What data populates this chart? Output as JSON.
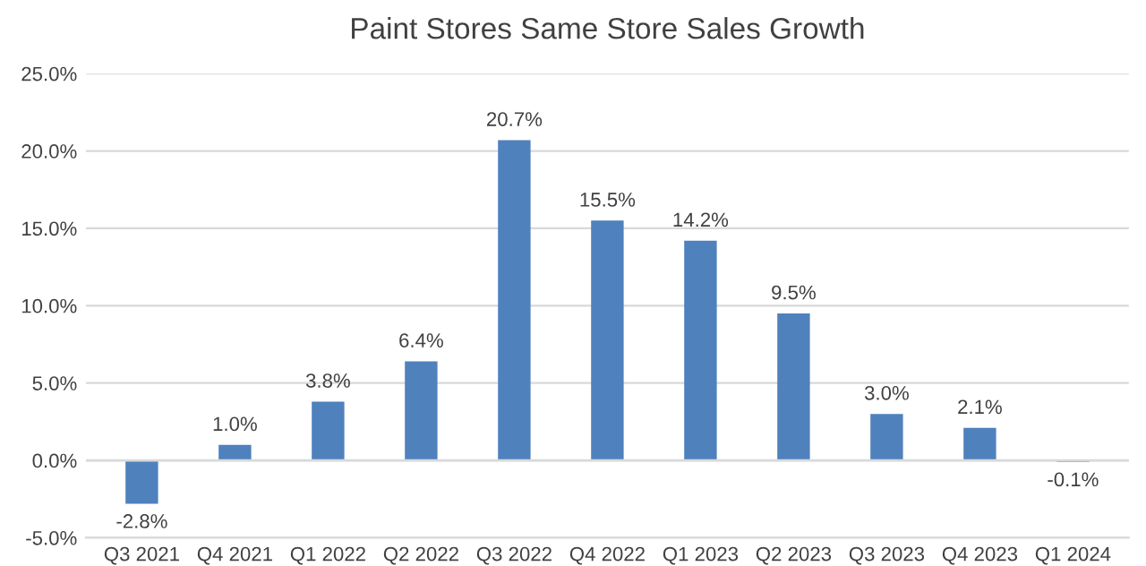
{
  "chart_data": {
    "type": "bar",
    "title": "Paint Stores Same Store Sales Growth",
    "categories": [
      "Q3 2021",
      "Q4 2021",
      "Q1 2022",
      "Q2 2022",
      "Q3 2022",
      "Q4 2022",
      "Q1 2023",
      "Q2 2023",
      "Q3 2023",
      "Q4 2023",
      "Q1 2024"
    ],
    "values": [
      -2.8,
      1.0,
      3.8,
      6.4,
      20.7,
      15.5,
      14.2,
      9.5,
      3.0,
      2.1,
      -0.1
    ],
    "value_labels": [
      "-2.8%",
      "1.0%",
      "3.8%",
      "6.4%",
      "20.7%",
      "15.5%",
      "14.2%",
      "9.5%",
      "3.0%",
      "2.1%",
      "-0.1%"
    ],
    "color": "#4f81bd",
    "ylim": [
      -5,
      25
    ],
    "yticks": [
      {
        "value": -5,
        "label": "-5.0%"
      },
      {
        "value": 0,
        "label": "0.0%"
      },
      {
        "value": 5,
        "label": "5.0%"
      },
      {
        "value": 10,
        "label": "10.0%"
      },
      {
        "value": 15,
        "label": "15.0%"
      },
      {
        "value": 20,
        "label": "20.0%"
      },
      {
        "value": 25,
        "label": "25.0%"
      }
    ],
    "grid": "y",
    "legend": false
  }
}
